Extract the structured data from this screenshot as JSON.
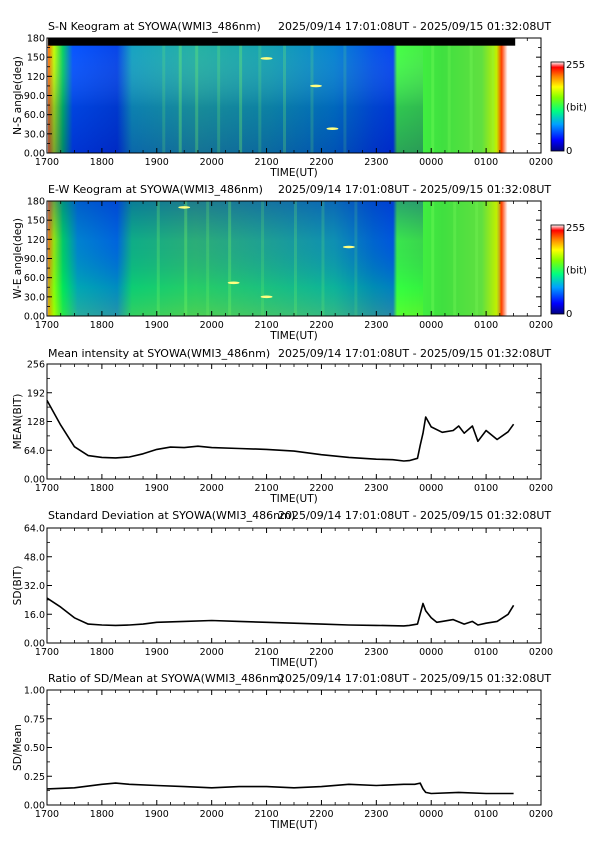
{
  "figure": {
    "time_ticks": [
      "1700",
      "1800",
      "1900",
      "2000",
      "2100",
      "2200",
      "2300",
      "0000",
      "0100",
      "0200"
    ],
    "x_label": "TIME(UT)",
    "colorbar": {
      "max": "255",
      "unit": "(bit)",
      "min": "0"
    }
  },
  "chart_data": [
    {
      "type": "heatmap",
      "title": "S-N Keogram at SYOWA(WMI3_486nm)",
      "subtitle": "2025/09/14 17:01:08UT - 2025/09/15 01:32:08UT",
      "xlabel": "TIME(UT)",
      "ylabel": "N-S angle(deg)",
      "x_range_hours": [
        17.0,
        26.0
      ],
      "data_range_hours": [
        17.02,
        25.53
      ],
      "ylim": [
        0,
        180
      ],
      "yticks": [
        "0.00",
        "30.0",
        "60.0",
        "90.0",
        "120",
        "150",
        "180"
      ],
      "colorbar_range": [
        0,
        255
      ],
      "colormap": [
        "#000080",
        "#0000ff",
        "#00a0ff",
        "#00ff80",
        "#80ff00",
        "#ffff00",
        "#ff8000",
        "#ff0000",
        "#ffffff"
      ],
      "features": {
        "no_data_band_deg": [
          168,
          180
        ],
        "twilight_start_hours": 23.85,
        "bright_edge_hours": [
          17.02,
          25.5
        ]
      }
    },
    {
      "type": "heatmap",
      "title": "E-W Keogram at SYOWA(WMI3_486nm)",
      "subtitle": "2025/09/14 17:01:08UT - 2025/09/15 01:32:08UT",
      "xlabel": "TIME(UT)",
      "ylabel": "W-E angle(deg)",
      "x_range_hours": [
        17.0,
        26.0
      ],
      "data_range_hours": [
        17.02,
        25.53
      ],
      "ylim": [
        0,
        180
      ],
      "yticks": [
        "0.00",
        "30.0",
        "60.0",
        "90.0",
        "120",
        "150",
        "180"
      ],
      "colorbar_range": [
        0,
        255
      ],
      "features": {
        "twilight_start_hours": 23.85,
        "bright_edge_hours": [
          17.02,
          25.5
        ]
      }
    },
    {
      "type": "line",
      "title": "Mean intensity at SYOWA(WMI3_486nm)",
      "subtitle": "2025/09/14 17:01:08UT - 2025/09/15 01:32:08UT",
      "xlabel": "TIME(UT)",
      "ylabel": "MEAN(BIT)",
      "ylim": [
        0,
        256
      ],
      "yticks": [
        "0.00",
        "64.0",
        "128",
        "192",
        "256"
      ],
      "x_hours": [
        17.0,
        17.25,
        17.5,
        17.75,
        18.0,
        18.25,
        18.5,
        18.75,
        19.0,
        19.25,
        19.5,
        19.75,
        20.0,
        20.5,
        21.0,
        21.5,
        22.0,
        22.5,
        23.0,
        23.3,
        23.5,
        23.6,
        23.75,
        23.8,
        23.85,
        23.9,
        24.0,
        24.2,
        24.4,
        24.5,
        24.6,
        24.75,
        24.85,
        25.0,
        25.2,
        25.4,
        25.5
      ],
      "values": [
        175,
        120,
        72,
        52,
        48,
        47,
        49,
        56,
        66,
        71,
        70,
        73,
        70,
        68,
        66,
        62,
        54,
        48,
        44,
        43,
        40,
        41,
        46,
        75,
        102,
        138,
        116,
        104,
        108,
        118,
        102,
        118,
        84,
        108,
        88,
        105,
        122
      ]
    },
    {
      "type": "line",
      "title": "Standard Deviation at SYOWA(WMI3_486nm)",
      "subtitle": "2025/09/14 17:01:08UT - 2025/09/15 01:32:08UT",
      "xlabel": "TIME(UT)",
      "ylabel": "SD(BIT)",
      "ylim": [
        0,
        64
      ],
      "yticks": [
        "0.00",
        "16.0",
        "32.0",
        "48.0",
        "64.0"
      ],
      "x_hours": [
        17.0,
        17.25,
        17.5,
        17.75,
        18.0,
        18.25,
        18.5,
        18.75,
        19.0,
        19.5,
        20.0,
        20.5,
        21.0,
        21.5,
        22.0,
        22.5,
        23.0,
        23.5,
        23.6,
        23.75,
        23.85,
        23.9,
        24.0,
        24.1,
        24.2,
        24.4,
        24.6,
        24.75,
        24.85,
        25.0,
        25.2,
        25.4,
        25.5
      ],
      "values": [
        25,
        20,
        14,
        10.5,
        10,
        9.8,
        10,
        10.5,
        11.5,
        12,
        12.5,
        12,
        11.5,
        11,
        10.5,
        10,
        9.8,
        9.5,
        9.8,
        10.5,
        22,
        18,
        14,
        11.5,
        12,
        13,
        10.5,
        12,
        10,
        11,
        12,
        16,
        21
      ]
    },
    {
      "type": "line",
      "title": "Ratio of SD/Mean at SYOWA(WMI3_486nm)",
      "subtitle": "2025/09/14 17:01:08UT - 2025/09/15 01:32:08UT",
      "xlabel": "TIME(UT)",
      "ylabel": "SD/Mean",
      "ylim": [
        0,
        1.0
      ],
      "yticks": [
        "0.00",
        "0.25",
        "0.50",
        "0.75",
        "1.00"
      ],
      "x_hours": [
        17.0,
        17.5,
        18.0,
        18.25,
        18.5,
        19.0,
        19.5,
        20.0,
        20.5,
        21.0,
        21.5,
        22.0,
        22.5,
        23.0,
        23.5,
        23.7,
        23.8,
        23.85,
        23.9,
        24.0,
        24.5,
        25.0,
        25.5
      ],
      "values": [
        0.14,
        0.15,
        0.18,
        0.19,
        0.18,
        0.17,
        0.16,
        0.15,
        0.16,
        0.16,
        0.15,
        0.16,
        0.18,
        0.17,
        0.18,
        0.18,
        0.19,
        0.14,
        0.11,
        0.1,
        0.11,
        0.1,
        0.1
      ]
    }
  ]
}
